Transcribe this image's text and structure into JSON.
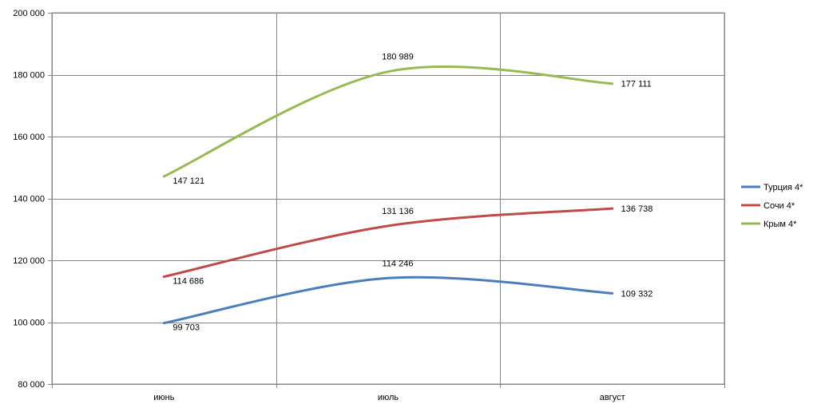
{
  "chart_data": {
    "type": "line",
    "title": "",
    "xlabel": "",
    "ylabel": "",
    "categories": [
      "июнь",
      "июль",
      "август"
    ],
    "ylim": [
      80000,
      200000
    ],
    "yticks": [
      80000,
      100000,
      120000,
      140000,
      160000,
      180000,
      200000
    ],
    "ytick_labels": [
      "80 000",
      "100 000",
      "120 000",
      "140 000",
      "160 000",
      "180 000",
      "200 000"
    ],
    "grid": true,
    "smooth": true,
    "legend_position": "right",
    "series": [
      {
        "name": "Турция 4*",
        "color": "#4a7ebb",
        "values": [
          99703,
          114246,
          109332
        ],
        "labels": [
          "99 703",
          "114 246",
          "109 332"
        ]
      },
      {
        "name": "Сочи 4*",
        "color": "#be4b48",
        "values": [
          114686,
          131136,
          136738
        ],
        "labels": [
          "114 686",
          "131 136",
          "136 738"
        ]
      },
      {
        "name": "Крым 4*",
        "color": "#98b954",
        "values": [
          147121,
          180989,
          177111
        ],
        "labels": [
          "147 121",
          "180 989",
          "177 111"
        ]
      }
    ]
  }
}
